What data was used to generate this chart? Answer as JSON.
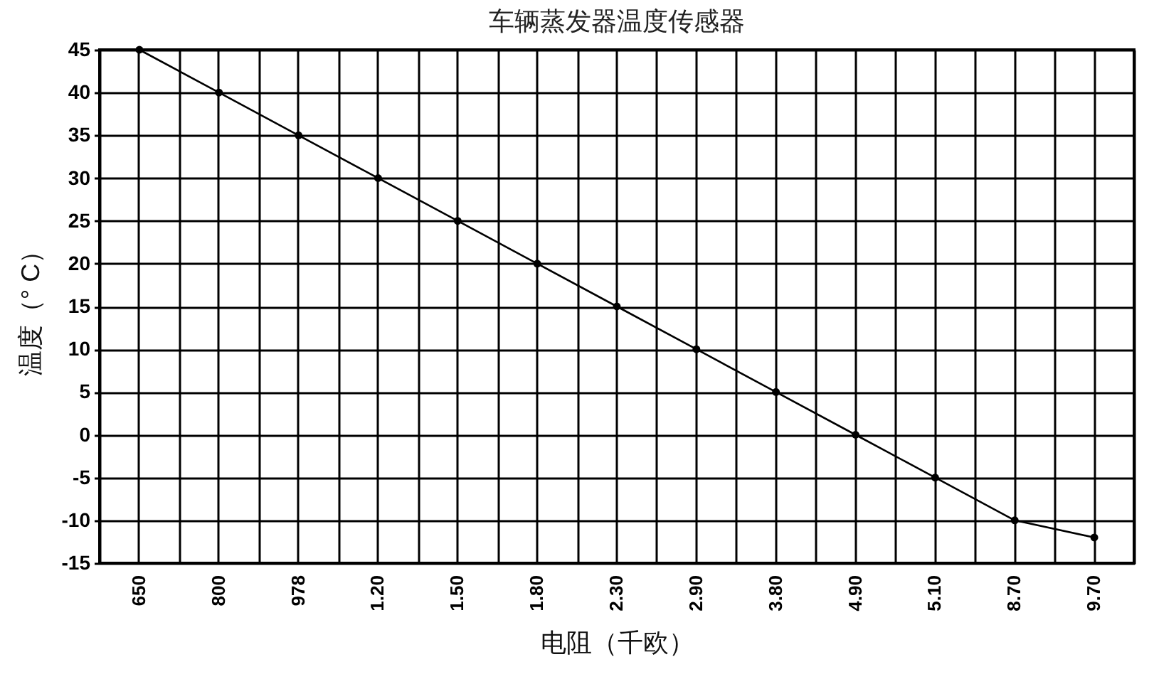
{
  "chart_data": {
    "type": "line",
    "title": "车辆蒸发器温度传感器",
    "xlabel": "电阻（千欧）",
    "ylabel": "温度（° C）",
    "categories": [
      "650",
      "800",
      "978",
      "1.20",
      "1.50",
      "1.80",
      "2.30",
      "2.90",
      "3.80",
      "4.90",
      "5.10",
      "8.70",
      "9.70"
    ],
    "series": [
      {
        "color": "#000000",
        "values": [
          45,
          40,
          35,
          30,
          25,
          20,
          15,
          10,
          5,
          0,
          -5,
          -10,
          -12
        ]
      }
    ],
    "ylim": [
      -15,
      45
    ],
    "yticks": [
      -15,
      -10,
      -5,
      0,
      5,
      10,
      15,
      20,
      25,
      30,
      35,
      40,
      45
    ],
    "grid": true,
    "marker": "circle",
    "line_style": "solid"
  }
}
